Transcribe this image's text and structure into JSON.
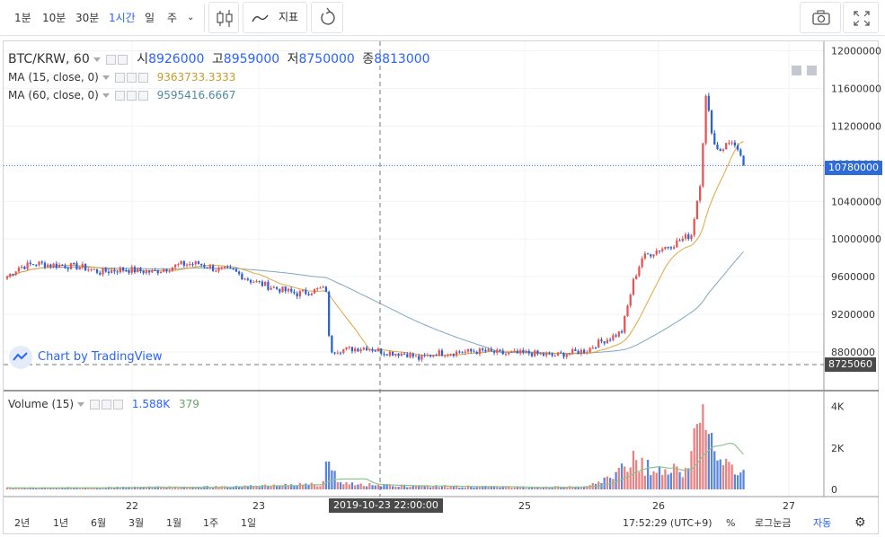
{
  "toolbar": {
    "intervals": [
      "1분",
      "10분",
      "30분",
      "1시간",
      "일",
      "주"
    ],
    "active_interval": "1시간",
    "indicators_label": "지표"
  },
  "legend": {
    "symbol": "BTC/KRW, 60",
    "open_label": "시",
    "open": "8926000",
    "high_label": "고",
    "high": "8959000",
    "low_label": "저",
    "low": "8750000",
    "close_label": "종",
    "close": "8813000",
    "ma15_label": "MA (15, close, 0)",
    "ma15_value": "9363733.3333",
    "ma60_label": "MA (60, close, 0)",
    "ma60_value": "9595416.6667",
    "volume_label": "Volume (15)",
    "volume_value": "1.588K",
    "volume_ma_value": "379"
  },
  "watermark": "Chart by TradingView",
  "crosshair_label": "2019-10-23 22:00:00",
  "last_price_label": "10780000",
  "crosshair_price_label": "8725060",
  "bottombar": {
    "ranges": [
      "2년",
      "1년",
      "6월",
      "3월",
      "1월",
      "1주",
      "1일"
    ],
    "time": "17:52:29 (UTC+9)",
    "percent": "%",
    "log": "로그눈금",
    "auto": "자동"
  },
  "colors": {
    "up": "#e55353",
    "down": "#2962d6",
    "ma15": "#e0a63c",
    "ma60": "#7fa7bf",
    "vol_up": "#e57373",
    "vol_down": "#4878d8",
    "accent": "#2962ff"
  },
  "chart_data": {
    "type": "candlestick",
    "interval": "60",
    "x_ticks": [
      "22",
      "23",
      "25",
      "26",
      "27"
    ],
    "y_ticks": [
      "8800000",
      "9200000",
      "9600000",
      "10000000",
      "10400000",
      "10800000",
      "11200000",
      "11600000",
      "12000000"
    ],
    "ylim": [
      8400000,
      12100000
    ],
    "volume_ticks": [
      "0",
      "2K",
      "4K"
    ],
    "volume_ylim": [
      0,
      4500
    ],
    "anchors": [
      [
        0,
        9600000
      ],
      [
        4,
        9700000
      ],
      [
        10,
        9740000
      ],
      [
        18,
        9720000
      ],
      [
        26,
        9700000
      ],
      [
        32,
        9650000
      ],
      [
        40,
        9680000
      ],
      [
        50,
        9650000
      ],
      [
        60,
        9730000
      ],
      [
        66,
        9740000
      ],
      [
        72,
        9680000
      ],
      [
        78,
        9660000
      ],
      [
        84,
        9560000
      ],
      [
        90,
        9500000
      ],
      [
        96,
        9450000
      ],
      [
        100,
        9420000
      ],
      [
        104,
        9440000
      ],
      [
        108,
        9470000
      ],
      [
        110,
        9460000
      ],
      [
        111,
        8950000
      ],
      [
        112,
        8820000
      ],
      [
        118,
        8830000
      ],
      [
        124,
        8850000
      ],
      [
        130,
        8800000
      ],
      [
        138,
        8780000
      ],
      [
        142,
        8730000
      ],
      [
        148,
        8790000
      ],
      [
        156,
        8800000
      ],
      [
        164,
        8810000
      ],
      [
        172,
        8780000
      ],
      [
        180,
        8790000
      ],
      [
        188,
        8760000
      ],
      [
        196,
        8800000
      ],
      [
        200,
        8820000
      ],
      [
        204,
        8900000
      ],
      [
        208,
        8950000
      ],
      [
        212,
        9020000
      ],
      [
        216,
        9550000
      ],
      [
        219,
        9800000
      ],
      [
        224,
        9880000
      ],
      [
        230,
        9950000
      ],
      [
        236,
        10050000
      ],
      [
        239,
        10600000
      ],
      [
        241,
        11500000
      ],
      [
        244,
        11000000
      ],
      [
        246,
        10950000
      ],
      [
        250,
        11050000
      ],
      [
        254,
        10780000
      ]
    ],
    "volume_anchors": [
      [
        0,
        80
      ],
      [
        40,
        120
      ],
      [
        80,
        150
      ],
      [
        108,
        300
      ],
      [
        110,
        1200
      ],
      [
        112,
        1300
      ],
      [
        114,
        350
      ],
      [
        140,
        200
      ],
      [
        180,
        120
      ],
      [
        200,
        150
      ],
      [
        210,
        700
      ],
      [
        216,
        1800
      ],
      [
        220,
        1300
      ],
      [
        226,
        900
      ],
      [
        234,
        1200
      ],
      [
        238,
        3000
      ],
      [
        240,
        4300
      ],
      [
        242,
        3400
      ],
      [
        246,
        1700
      ],
      [
        250,
        1000
      ],
      [
        254,
        800
      ]
    ]
  }
}
